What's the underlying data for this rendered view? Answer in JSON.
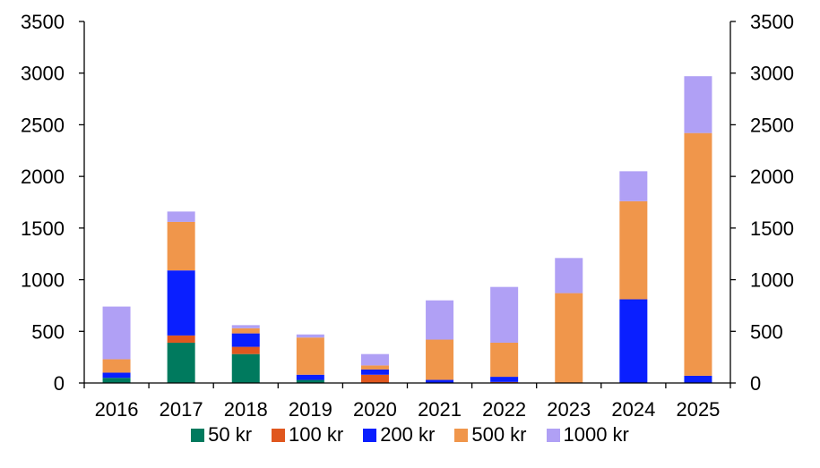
{
  "chart_data": {
    "type": "bar",
    "stacked": true,
    "categories": [
      "2016",
      "2017",
      "2018",
      "2019",
      "2020",
      "2021",
      "2022",
      "2023",
      "2024",
      "2025"
    ],
    "series": [
      {
        "name": "50 kr",
        "color": "#007A5E",
        "values": [
          50,
          390,
          280,
          30,
          0,
          0,
          0,
          0,
          0,
          0
        ]
      },
      {
        "name": "100 kr",
        "color": "#E0571E",
        "values": [
          0,
          70,
          70,
          0,
          80,
          0,
          10,
          0,
          0,
          0
        ]
      },
      {
        "name": "200 kr",
        "color": "#0A1FFF",
        "values": [
          50,
          630,
          130,
          50,
          50,
          30,
          50,
          0,
          810,
          70
        ]
      },
      {
        "name": "500 kr",
        "color": "#F0964B",
        "values": [
          130,
          470,
          50,
          360,
          40,
          390,
          330,
          870,
          950,
          2350
        ]
      },
      {
        "name": "1000 kr",
        "color": "#B0A0F5",
        "values": [
          510,
          100,
          30,
          30,
          110,
          380,
          540,
          340,
          290,
          550
        ]
      }
    ],
    "ylim": [
      0,
      3500
    ],
    "yticks": [
      "0",
      "500",
      "1000",
      "1500",
      "2000",
      "2500",
      "3000",
      "3500"
    ],
    "secondary_axis": true,
    "grid": false,
    "legend_position": "bottom"
  }
}
